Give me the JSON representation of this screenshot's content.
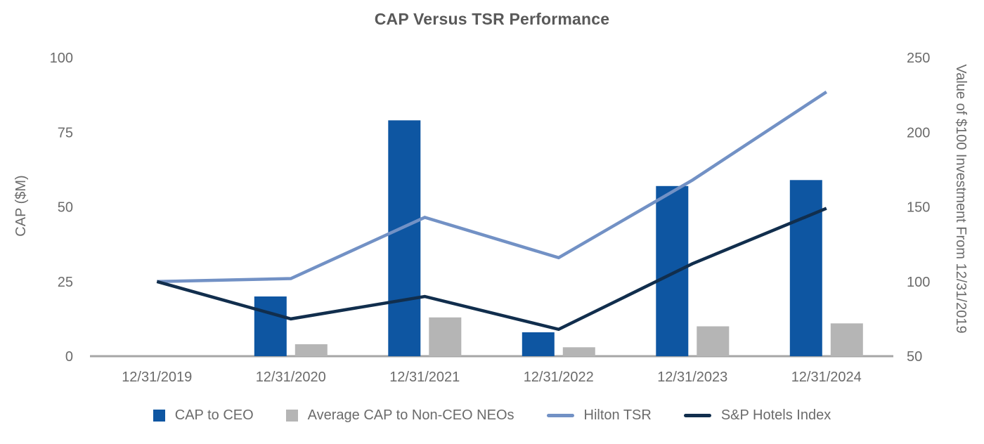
{
  "chart_data": {
    "type": "combo-bar-line",
    "title": "CAP Versus TSR Performance",
    "categories": [
      "12/31/2019",
      "12/31/2020",
      "12/31/2021",
      "12/31/2022",
      "12/31/2023",
      "12/31/2024"
    ],
    "left_axis": {
      "label": "CAP ($M)",
      "min": 0,
      "max": 100,
      "ticks": [
        0,
        25,
        50,
        75,
        100
      ]
    },
    "right_axis": {
      "label": "Value of $100 Investment From 12/31/2019",
      "min": 50,
      "max": 250,
      "ticks": [
        50,
        100,
        150,
        200,
        250
      ]
    },
    "series": [
      {
        "name": "CAP to CEO",
        "type": "bar",
        "axis": "left",
        "color": "#0E56A2",
        "values": [
          null,
          20,
          79,
          8,
          57,
          59
        ]
      },
      {
        "name": "Average CAP to Non-CEO NEOs",
        "type": "bar",
        "axis": "left",
        "color": "#B5B5B5",
        "values": [
          null,
          4,
          13,
          3,
          10,
          11
        ]
      },
      {
        "name": "Hilton TSR",
        "type": "line",
        "axis": "right",
        "color": "#7291C5",
        "values": [
          100,
          102,
          143,
          116,
          168,
          227
        ]
      },
      {
        "name": "S&P Hotels Index",
        "type": "line",
        "axis": "right",
        "color": "#112E4D",
        "values": [
          100,
          75,
          90,
          68,
          112,
          149
        ]
      }
    ],
    "grid": false,
    "legend_position": "bottom",
    "colors": {
      "title_text": "#595959",
      "tick_text": "#6B6B6B",
      "axis_line": "#A6A6A6",
      "background": "#FFFFFF"
    }
  }
}
